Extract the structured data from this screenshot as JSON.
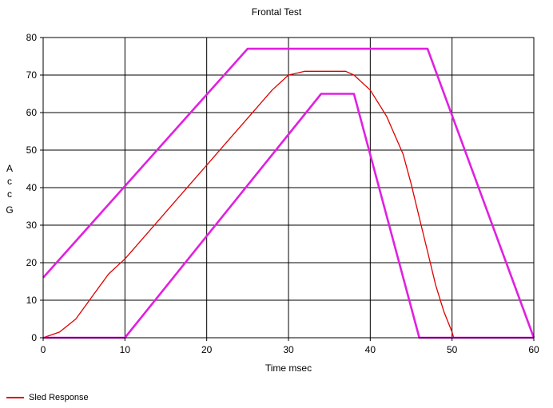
{
  "chart_data": {
    "type": "line",
    "title": "Frontal Test",
    "xlabel": "Time msec",
    "ylabel_chars": [
      "A",
      "c",
      "c",
      "G"
    ],
    "xlim": [
      0,
      60
    ],
    "ylim": [
      0,
      80
    ],
    "xticks": [
      0,
      10,
      20,
      30,
      40,
      50,
      60
    ],
    "yticks": [
      0,
      10,
      20,
      30,
      40,
      50,
      60,
      70,
      80
    ],
    "grid": true,
    "legend_position": "bottom-left",
    "series": [
      {
        "name": "Sled Response",
        "color": "#e00000",
        "points": [
          [
            0,
            0
          ],
          [
            2,
            1.5
          ],
          [
            4,
            5
          ],
          [
            6,
            11
          ],
          [
            8,
            17
          ],
          [
            10,
            21
          ],
          [
            12,
            26
          ],
          [
            14,
            31
          ],
          [
            16,
            36
          ],
          [
            18,
            41
          ],
          [
            20,
            46
          ],
          [
            22,
            51
          ],
          [
            24,
            56
          ],
          [
            26,
            61
          ],
          [
            28,
            66
          ],
          [
            30,
            70
          ],
          [
            32,
            71
          ],
          [
            34,
            71
          ],
          [
            36,
            71
          ],
          [
            37,
            71
          ],
          [
            38,
            70
          ],
          [
            40,
            66
          ],
          [
            42,
            59
          ],
          [
            44,
            49
          ],
          [
            45,
            41
          ],
          [
            46,
            32
          ],
          [
            47,
            23
          ],
          [
            48,
            14
          ],
          [
            49,
            7
          ],
          [
            50,
            1.5
          ],
          [
            50.2,
            0
          ]
        ]
      },
      {
        "color": "#e020e0",
        "points": [
          [
            0,
            16
          ],
          [
            25,
            77
          ],
          [
            47,
            77
          ],
          [
            60,
            0
          ]
        ]
      },
      {
        "color": "#e020e0",
        "points": [
          [
            0,
            0
          ],
          [
            10,
            0
          ],
          [
            34,
            65
          ],
          [
            38,
            65
          ],
          [
            46,
            0
          ],
          [
            60,
            0
          ]
        ]
      }
    ]
  }
}
